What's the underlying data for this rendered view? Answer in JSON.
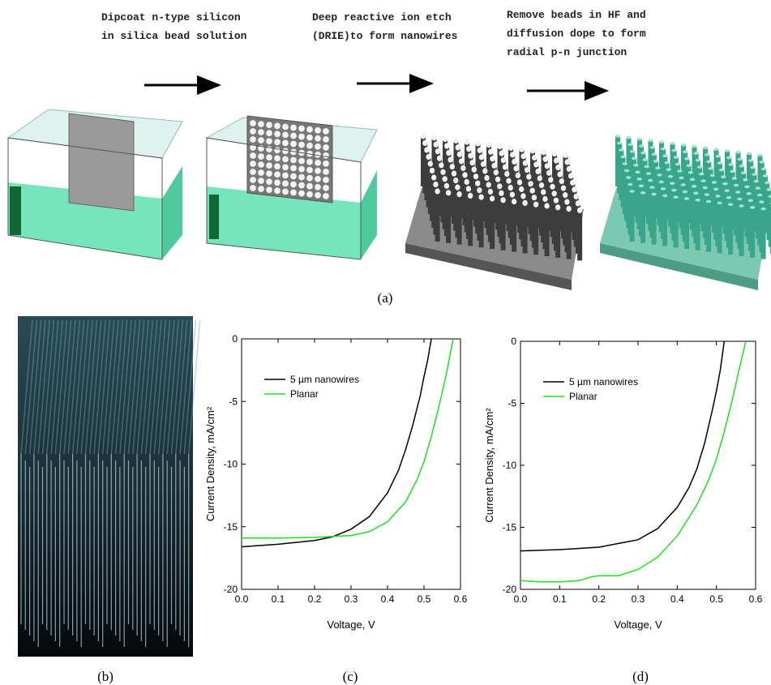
{
  "steps": [
    {
      "lines": [
        "Dipcoat n-type silicon",
        "in silica bead solution"
      ]
    },
    {
      "lines": [
        "Deep reactive ion etch",
        "(DRIE)to form nanowires"
      ]
    },
    {
      "lines": [
        "Remove beads in HF and",
        "diffusion dope to form",
        "radial p-n junction"
      ]
    }
  ],
  "panel_labels": [
    "(a)",
    "(b)",
    "(c)",
    "(d)"
  ],
  "chart_data": [
    {
      "type": "line",
      "xlabel": "Voltage, V",
      "ylabel": "Current Density, mA/cm²",
      "xlim": [
        0,
        0.6
      ],
      "ylim": [
        -20,
        0
      ],
      "xticks": [
        {
          "value": 0,
          "label": "0.0"
        },
        0.1,
        0.2,
        0.3,
        0.4,
        0.5,
        0.6
      ],
      "yticks": [
        0,
        -5,
        -10,
        -15,
        -20
      ],
      "legend": "upper left",
      "series": [
        {
          "name": "5 µm nanowires",
          "color": "#000000",
          "x": [
            0,
            0.1,
            0.2,
            0.25,
            0.3,
            0.35,
            0.4,
            0.43,
            0.45,
            0.47,
            0.49,
            0.5,
            0.51,
            0.52
          ],
          "values": [
            -16.6,
            -16.4,
            -16.1,
            -15.8,
            -15.2,
            -14.2,
            -12.3,
            -10.5,
            -8.8,
            -6.8,
            -4.5,
            -3.0,
            -1.7,
            0
          ]
        },
        {
          "name": "Planar",
          "color": "#22dd22",
          "x": [
            0,
            0.1,
            0.2,
            0.3,
            0.35,
            0.4,
            0.45,
            0.48,
            0.5,
            0.52,
            0.54,
            0.56,
            0.57,
            0.58
          ],
          "values": [
            -15.9,
            -15.9,
            -15.85,
            -15.7,
            -15.4,
            -14.6,
            -13.0,
            -11.3,
            -9.8,
            -7.8,
            -5.5,
            -3.0,
            -1.5,
            0
          ]
        }
      ]
    },
    {
      "type": "line",
      "xlabel": "Voltage, V",
      "ylabel": "Current Density, mA/cm²",
      "xlim": [
        0,
        0.6
      ],
      "ylim": [
        -20,
        0
      ],
      "xticks": [
        {
          "value": 0,
          "label": "0.0"
        },
        0.1,
        0.2,
        0.3,
        0.4,
        0.5,
        0.6
      ],
      "yticks": [
        0,
        -5,
        -10,
        -15,
        -20
      ],
      "legend": "upper left",
      "series": [
        {
          "name": "5 µm nanowires",
          "color": "#000000",
          "x": [
            0,
            0.1,
            0.2,
            0.3,
            0.35,
            0.4,
            0.43,
            0.45,
            0.47,
            0.49,
            0.5,
            0.51,
            0.52
          ],
          "values": [
            -16.9,
            -16.8,
            -16.6,
            -16.0,
            -15.1,
            -13.4,
            -11.8,
            -10.3,
            -8.2,
            -5.5,
            -4.0,
            -2.3,
            0
          ]
        },
        {
          "name": "Planar",
          "color": "#22dd22",
          "x": [
            0,
            0.05,
            0.1,
            0.15,
            0.18,
            0.2,
            0.25,
            0.3,
            0.35,
            0.4,
            0.45,
            0.48,
            0.5,
            0.52,
            0.54,
            0.56,
            0.575
          ],
          "values": [
            -19.3,
            -19.4,
            -19.4,
            -19.3,
            -19.0,
            -18.9,
            -18.9,
            -18.4,
            -17.4,
            -15.7,
            -13.2,
            -11.2,
            -9.5,
            -7.3,
            -4.8,
            -2.0,
            0
          ]
        }
      ]
    }
  ]
}
